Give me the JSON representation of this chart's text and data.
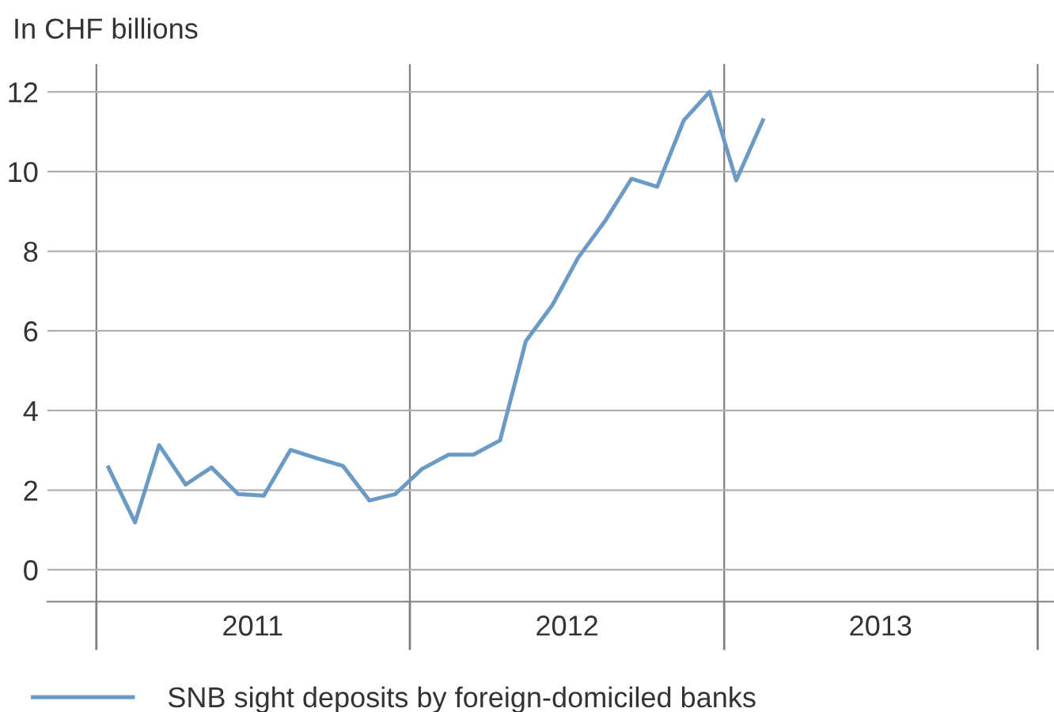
{
  "chart_data": {
    "type": "line",
    "ylabel": "In CHF billions",
    "x": [
      "2011-01-15",
      "2011-02-15",
      "2011-03-15",
      "2011-04-15",
      "2011-05-15",
      "2011-06-15",
      "2011-07-15",
      "2011-08-15",
      "2011-09-15",
      "2011-10-15",
      "2011-11-15",
      "2011-12-15",
      "2012-01-15",
      "2012-02-15",
      "2012-03-15",
      "2012-04-15",
      "2012-05-15",
      "2012-06-15",
      "2012-07-15",
      "2012-08-15",
      "2012-09-15",
      "2012-10-15",
      "2012-11-15",
      "2012-12-15",
      "2013-01-15",
      "2013-02-15"
    ],
    "series": [
      {
        "name": "SNB sight deposits by foreign-domiciled banks",
        "color": "#6b9ac4",
        "values": [
          2.57,
          1.19,
          3.13,
          2.14,
          2.57,
          1.9,
          1.86,
          3.01,
          2.8,
          2.61,
          1.74,
          1.9,
          2.53,
          2.89,
          2.89,
          3.25,
          5.74,
          6.65,
          7.84,
          8.75,
          9.82,
          9.62,
          11.29,
          12.0,
          9.78,
          11.29
        ]
      }
    ],
    "xlim": [
      "2010-11-05",
      "2014-01-20"
    ],
    "xticks": [
      {
        "value": "2011-01-01",
        "label": null
      },
      {
        "value": "2011-07-02",
        "label": "2011"
      },
      {
        "value": "2012-01-01",
        "label": null
      },
      {
        "value": "2012-07-02",
        "label": "2012"
      },
      {
        "value": "2013-01-01",
        "label": null
      },
      {
        "value": "2013-07-02",
        "label": "2013"
      },
      {
        "value": "2014-01-01",
        "label": null
      }
    ],
    "ylim": [
      -0.8,
      12.7
    ],
    "yticks": [
      0,
      2,
      4,
      6,
      8,
      10,
      12
    ],
    "grid": true,
    "legend": "bottom left",
    "marker": "none",
    "line_style": "solid"
  }
}
